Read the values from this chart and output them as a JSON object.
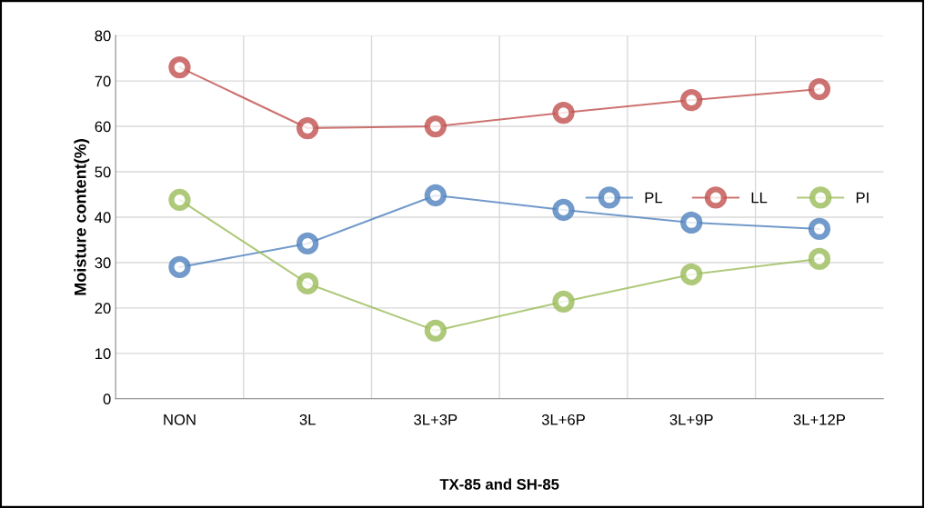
{
  "chart_data": {
    "type": "line",
    "xlabel": "TX-85 and SH-85",
    "ylabel": "Moisture content(%)",
    "categories": [
      "NON",
      "3L",
      "3L+3P",
      "3L+6P",
      "3L+9P",
      "3L+12P"
    ],
    "series": [
      {
        "name": "PL",
        "color": "#4f81bd",
        "values": [
          29,
          34.2,
          44.8,
          41.6,
          38.8,
          37.4
        ]
      },
      {
        "name": "LL",
        "color": "#c0504d",
        "values": [
          73,
          59.6,
          60,
          63,
          65.8,
          68.2
        ]
      },
      {
        "name": "PI",
        "color": "#9bbb59",
        "values": [
          43.8,
          25.4,
          15,
          21.4,
          27.4,
          30.8
        ]
      }
    ],
    "ylim": [
      0,
      80
    ],
    "yticks": [
      0,
      10,
      20,
      30,
      40,
      50,
      60,
      70,
      80
    ],
    "grid": true,
    "legend": "center right",
    "marker": "circle",
    "line_style": "solid"
  }
}
